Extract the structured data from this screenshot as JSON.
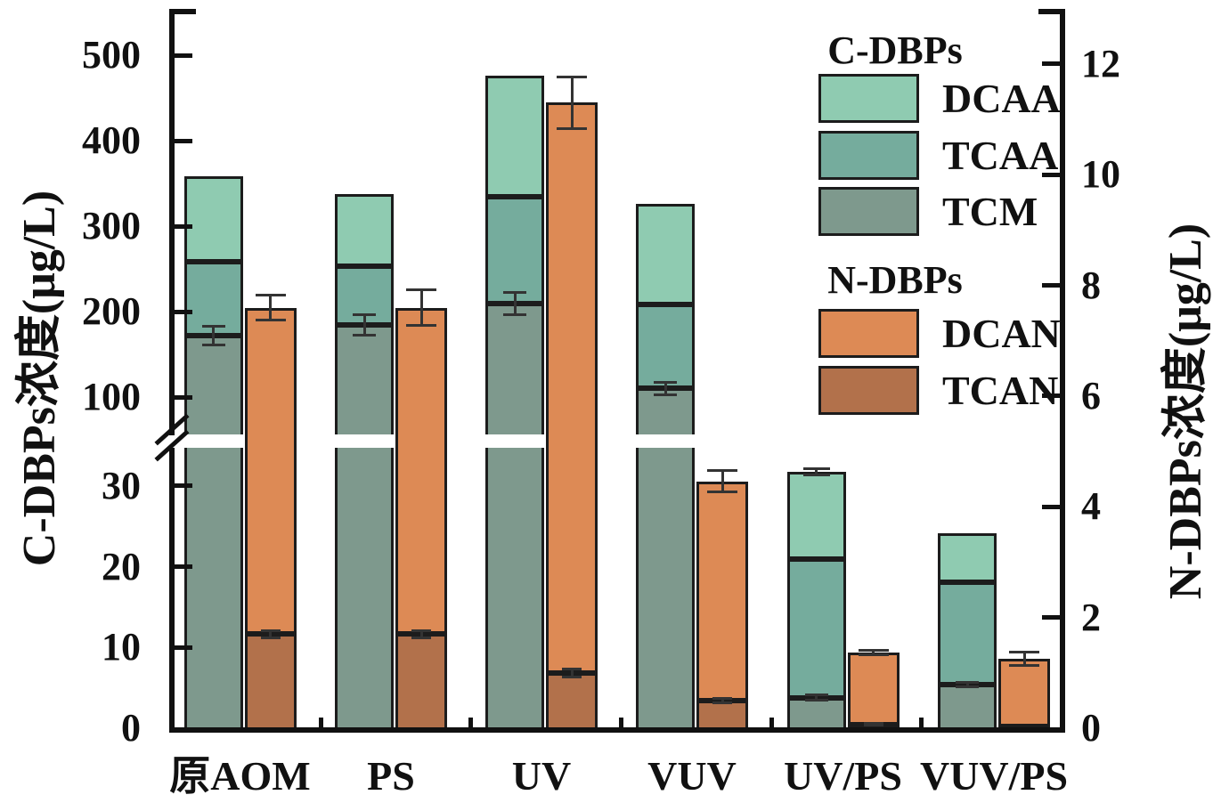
{
  "colors": {
    "dcaa": "#8FCBB1",
    "tcaa": "#75AC9D",
    "tcm": "#7E998D",
    "dcan": "#DD8A55",
    "tcan": "#B2714B",
    "outline": "#1c1c1c",
    "axis": "#111111",
    "error": "#333333",
    "band": "#ffffff",
    "background": "#ffffff"
  },
  "legend": {
    "groups": [
      {
        "heading": "C-DBPs",
        "items": [
          {
            "name": "DCAA",
            "color": "#8FCBB1"
          },
          {
            "name": "TCAA",
            "color": "#75AC9D"
          },
          {
            "name": "TCM",
            "color": "#7E998D"
          }
        ]
      },
      {
        "heading": "N-DBPs",
        "items": [
          {
            "name": "DCAN",
            "color": "#DD8A55"
          },
          {
            "name": "TCAN",
            "color": "#B2714B"
          }
        ]
      }
    ]
  },
  "chart_data": {
    "type": "bar",
    "stacked": true,
    "dual_axis": true,
    "grid": false,
    "legend_position": "upper-right",
    "categories": [
      "原AOM",
      "PS",
      "UV",
      "VUV",
      "UV/PS",
      "VUV/PS"
    ],
    "left_axis": {
      "label": "C-DBPs浓度(μg/L)",
      "units": "μg/L",
      "broken": true,
      "lower_ticks": [
        0,
        10,
        20,
        30
      ],
      "upper_ticks": [
        100,
        200,
        300,
        400,
        500
      ],
      "lower_range": [
        0,
        35
      ],
      "upper_range": [
        57,
        555
      ]
    },
    "right_axis": {
      "label": "N-DBPs浓度(μg/L)",
      "units": "μg/L",
      "broken": false,
      "ticks": [
        0,
        2,
        4,
        6,
        8,
        10,
        12
      ],
      "range": [
        0,
        13
      ]
    },
    "series": [
      {
        "name": "TCM",
        "group": "C-DBPs",
        "axis": "left",
        "values": [
          172,
          184,
          209,
          110,
          3.8,
          5.4
        ],
        "errors": [
          11,
          12,
          13,
          7,
          0.3,
          0.3
        ]
      },
      {
        "name": "TCAA",
        "group": "C-DBPs",
        "axis": "left",
        "values": [
          86,
          69,
          125,
          98,
          17.2,
          12.7
        ]
      },
      {
        "name": "DCAA",
        "group": "C-DBPs",
        "axis": "left",
        "values": [
          100,
          84,
          142,
          118,
          10.8,
          6.1
        ]
      },
      {
        "name": "TCAN",
        "group": "N-DBPs",
        "axis": "right",
        "values": [
          1.7,
          1.7,
          1.0,
          0.5,
          0.07,
          0.04
        ],
        "errors": [
          0.06,
          0.06,
          0.07,
          0.04,
          0.02,
          0
        ]
      },
      {
        "name": "DCAN",
        "group": "N-DBPs",
        "axis": "right",
        "values": [
          5.9,
          5.9,
          10.3,
          3.96,
          1.29,
          1.21
        ]
      }
    ],
    "c_dbps_totals": [
      358,
      337,
      476,
      326,
      31.8,
      24.2
    ],
    "c_dbps_total_errors": [
      0,
      0,
      0,
      0,
      0.4,
      0
    ],
    "n_dbps_totals": [
      7.6,
      7.6,
      11.3,
      4.46,
      1.36,
      1.25
    ],
    "n_dbps_total_errors": [
      0.23,
      0.32,
      0.46,
      0.19,
      0.04,
      0.12
    ]
  }
}
